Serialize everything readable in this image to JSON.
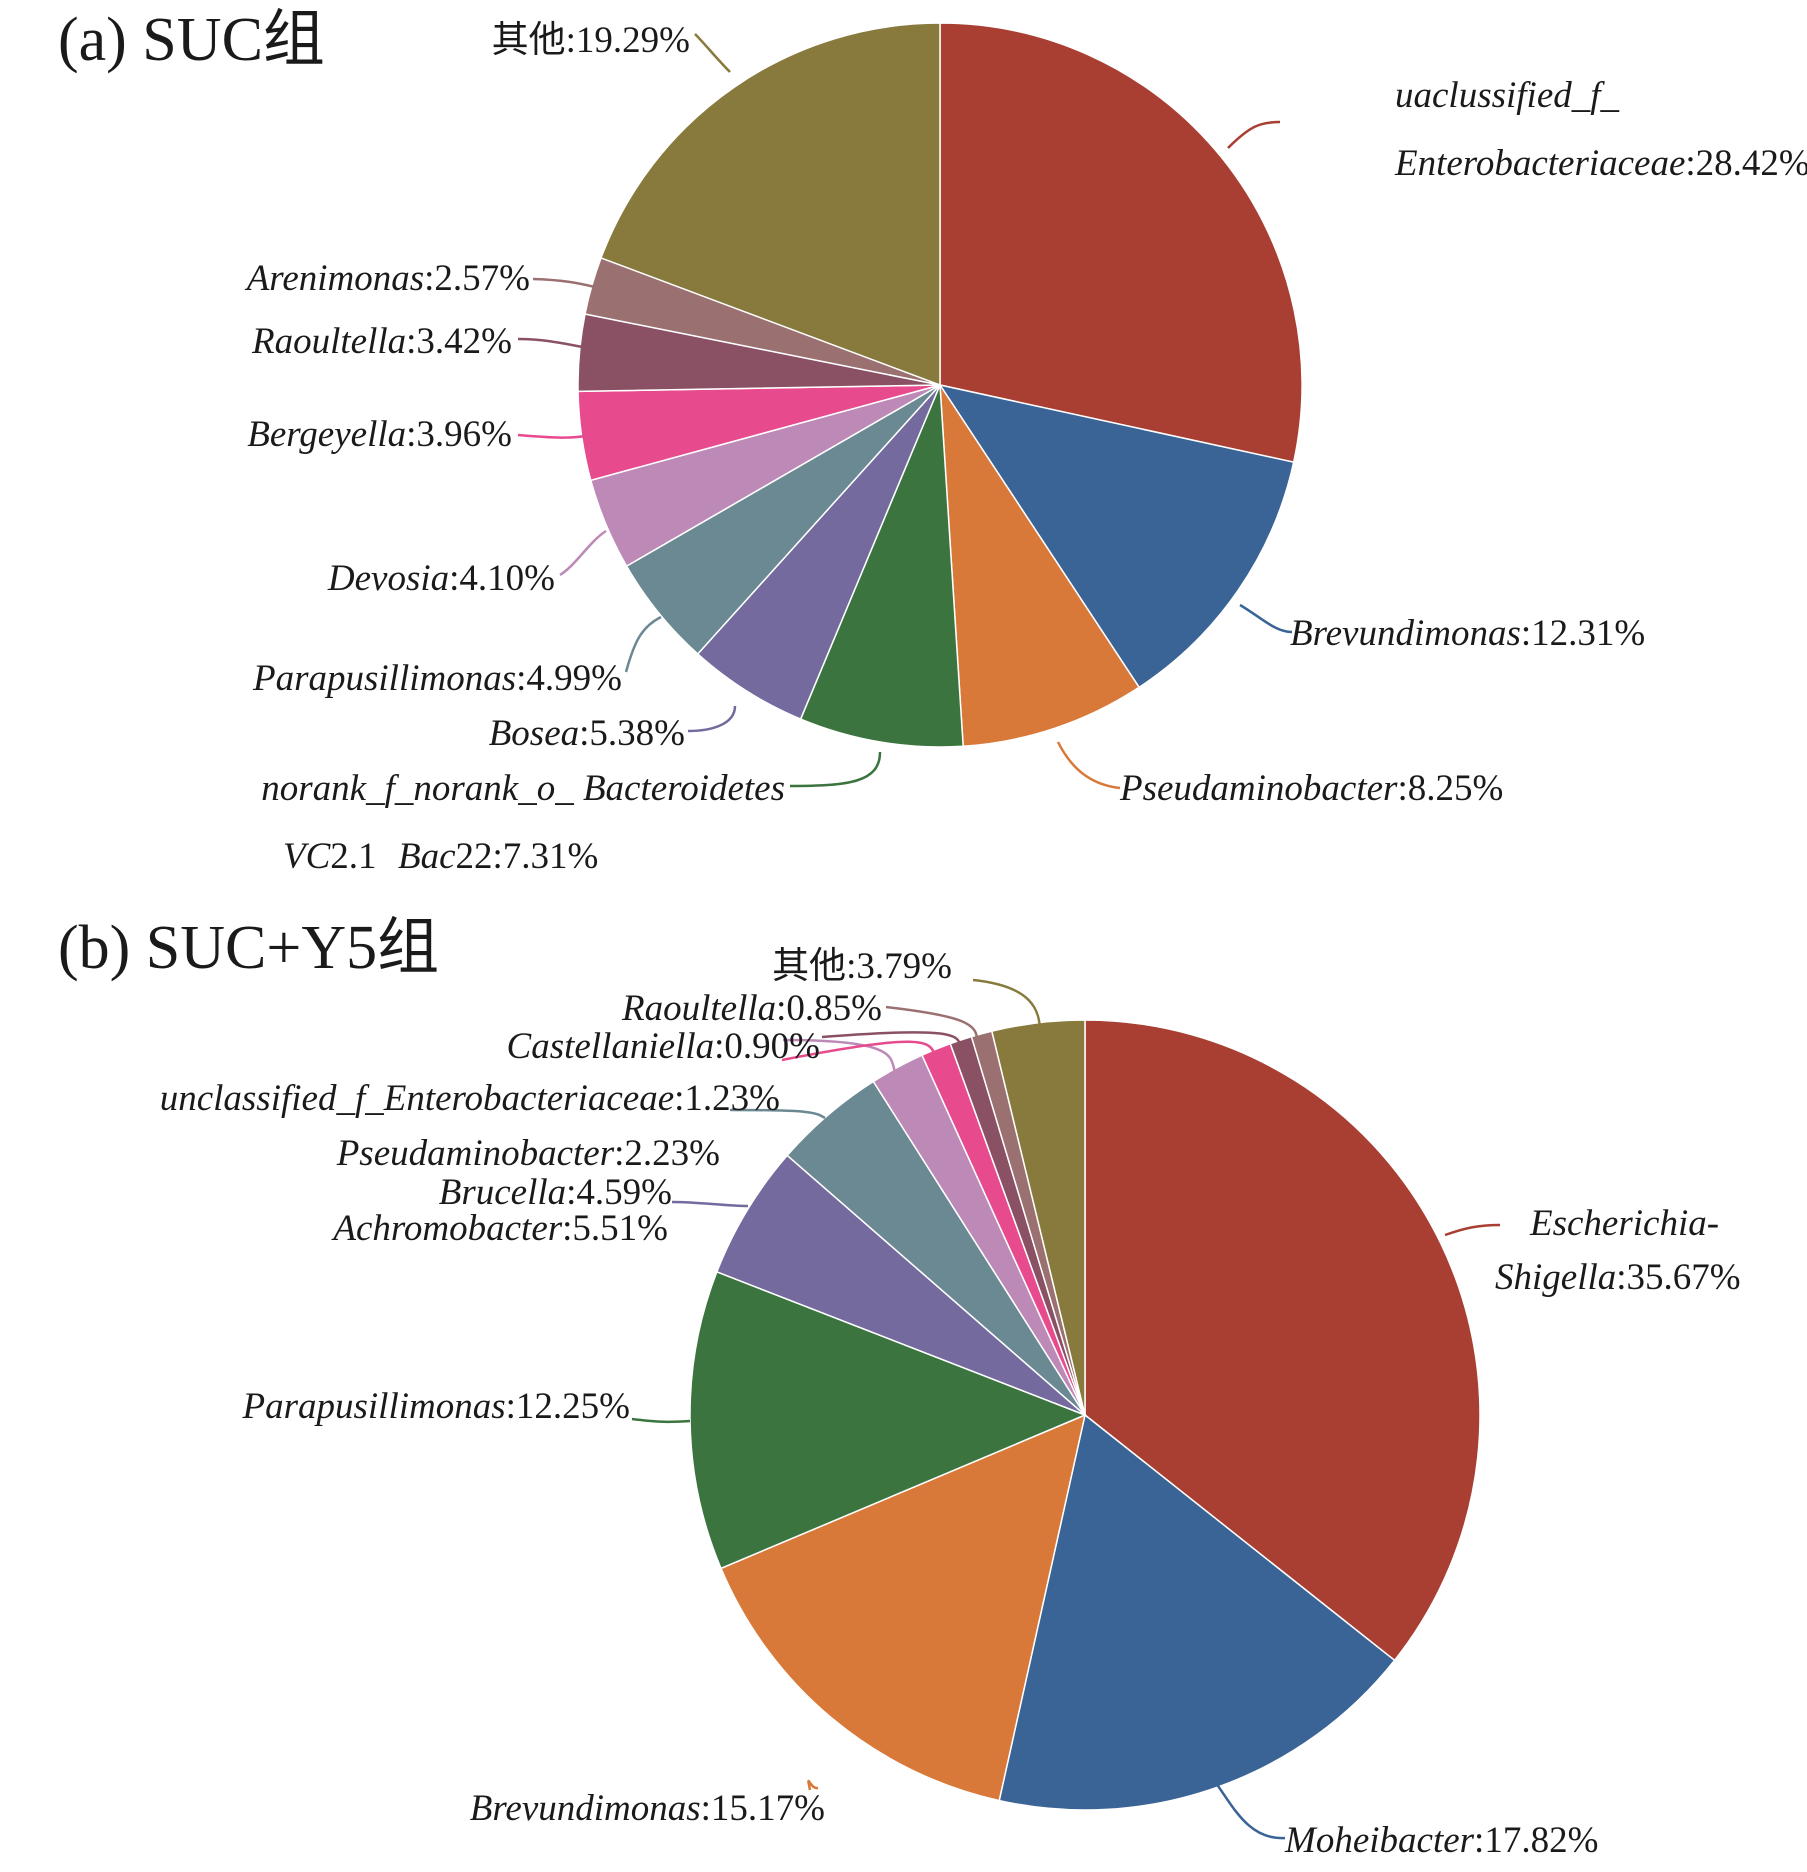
{
  "chart_data": [
    {
      "type": "pie",
      "title": "(a)  SUC组",
      "slices": [
        {
          "label": "uaclussified_f_ Enterobacteriaceae",
          "label_lines": [
            [
              "uaclussified_f_",
              ""
            ],
            [
              "Enterobacteriaceae",
              ":28.42%"
            ]
          ],
          "value": 28.42,
          "color": "#a83f32"
        },
        {
          "label": "Brevundimonas",
          "label_lines": [
            [
              "Brevundimonas",
              ":12.31%"
            ]
          ],
          "value": 12.31,
          "color": "#3a6396"
        },
        {
          "label": "Pseudaminobacter",
          "label_lines": [
            [
              "Pseudaminobacter",
              ":8.25%"
            ]
          ],
          "value": 8.25,
          "color": "#d8793a"
        },
        {
          "label": "norank_f_norank_o_ Bacteroidetes VC2.1 Bac22",
          "label_lines": [
            [
              "norank_f_norank_o_ Bacteroidetes",
              ""
            ],
            [
              "VC",
              "2.1 "
            ],
            [
              "Bac",
              "22:7.31%"
            ]
          ],
          "value": 7.31,
          "color": "#3c7440"
        },
        {
          "label": "Bosea",
          "label_lines": [
            [
              "Bosea",
              ":5.38%"
            ]
          ],
          "value": 5.38,
          "color": "#746a9e"
        },
        {
          "label": "Parapusillimonas",
          "label_lines": [
            [
              "Parapusillimonas",
              ":4.99%"
            ]
          ],
          "value": 4.99,
          "color": "#6b8993"
        },
        {
          "label": "Devosia",
          "label_lines": [
            [
              "Devosia",
              ":4.10%"
            ]
          ],
          "value": 4.1,
          "color": "#bd8ab8"
        },
        {
          "label": "Bergeyella",
          "label_lines": [
            [
              "Bergeyella",
              ":3.96%"
            ]
          ],
          "value": 3.96,
          "color": "#e84a8e"
        },
        {
          "label": "Raoultella",
          "label_lines": [
            [
              "Raoultella",
              ":3.42%"
            ]
          ],
          "value": 3.42,
          "color": "#8a5064"
        },
        {
          "label": "Arenimonas",
          "label_lines": [
            [
              "Arenimonas",
              ":2.57%"
            ]
          ],
          "value": 2.57,
          "color": "#9b7070"
        },
        {
          "label": "其他",
          "label_lines": [
            [
              "",
              "其他:19.29%"
            ]
          ],
          "value": 19.29,
          "color": "#877a3c"
        }
      ]
    },
    {
      "type": "pie",
      "title": "(b)  SUC+Y5组",
      "slices": [
        {
          "label": "Escherichia- Shigella",
          "label_lines": [
            [
              "Escherichia",
              "-"
            ],
            [
              "Shigella",
              ":35.67%"
            ]
          ],
          "value": 35.67,
          "color": "#a83f32"
        },
        {
          "label": "Moheibacter",
          "label_lines": [
            [
              "Moheibacter",
              ":17.82%"
            ]
          ],
          "value": 17.82,
          "color": "#3a6396"
        },
        {
          "label": "Brevundimonas",
          "label_lines": [
            [
              "Brevundimonas",
              ":15.17%"
            ]
          ],
          "value": 15.17,
          "color": "#d8793a"
        },
        {
          "label": "Parapusillimonas",
          "label_lines": [
            [
              "Parapusillimonas",
              ":12.25%"
            ]
          ],
          "value": 12.25,
          "color": "#3c7440"
        },
        {
          "label": "Achromobacter",
          "label_lines": [
            [
              "Achromobacter",
              ":5.51%"
            ]
          ],
          "value": 5.51,
          "color": "#746a9e"
        },
        {
          "label": "Brucella",
          "label_lines": [
            [
              "Brucella",
              ":4.59%"
            ]
          ],
          "value": 4.59,
          "color": "#6b8993"
        },
        {
          "label": "Pseudaminobacter",
          "label_lines": [
            [
              "Pseudaminobacter",
              ":2.23%"
            ]
          ],
          "value": 2.23,
          "color": "#bd8ab8"
        },
        {
          "label": "unclassified_f_Enterobacteriaceae",
          "label_lines": [
            [
              "unclassified_f_Enterobacteriaceae",
              ":1.23%"
            ]
          ],
          "value": 1.23,
          "color": "#e84a8e"
        },
        {
          "label": "Castellaniella",
          "label_lines": [
            [
              "Castellaniella",
              ":0.90%"
            ]
          ],
          "value": 0.9,
          "color": "#8a5064"
        },
        {
          "label": "Raoultella",
          "label_lines": [
            [
              "Raoultella",
              ":0.85%"
            ]
          ],
          "value": 0.85,
          "color": "#9b7070"
        },
        {
          "label": "其他",
          "label_lines": [
            [
              "",
              "其他:3.79%"
            ]
          ],
          "value": 3.79,
          "color": "#877a3c"
        }
      ]
    }
  ]
}
